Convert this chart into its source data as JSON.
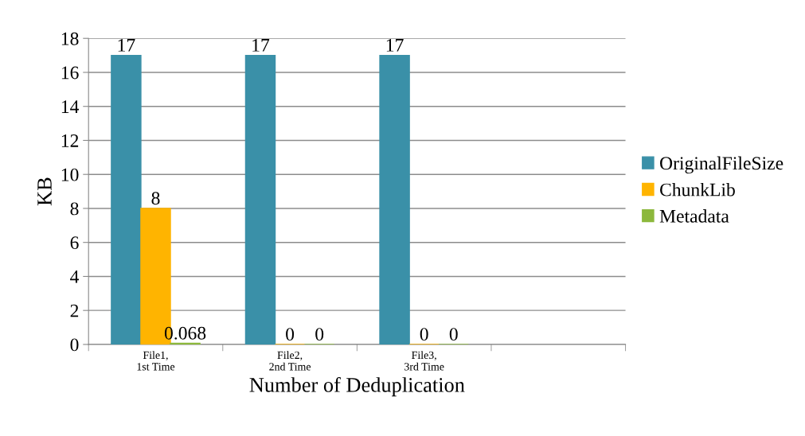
{
  "chart_data": {
    "type": "bar",
    "xlabel": "Number of Deduplication",
    "ylabel": "KB",
    "categories": [
      "File1,\n1st Time",
      "File2,\n2nd Time",
      "File3,\n3rd Time",
      null
    ],
    "series": [
      {
        "name": "OriginalFileSize",
        "color": "#3a90a8",
        "values": [
          17,
          17,
          17,
          null
        ]
      },
      {
        "name": "ChunkLib",
        "color": "#ffb400",
        "values": [
          8,
          0,
          0,
          null
        ]
      },
      {
        "name": "Metadata",
        "color": "#8cb83c",
        "values": [
          0.068,
          0,
          0,
          null
        ]
      }
    ],
    "ylim": [
      0,
      18
    ],
    "yticks": [
      0,
      2,
      4,
      6,
      8,
      10,
      12,
      14,
      16,
      18
    ],
    "grid": "y",
    "legend": "right",
    "data_labels": true
  }
}
